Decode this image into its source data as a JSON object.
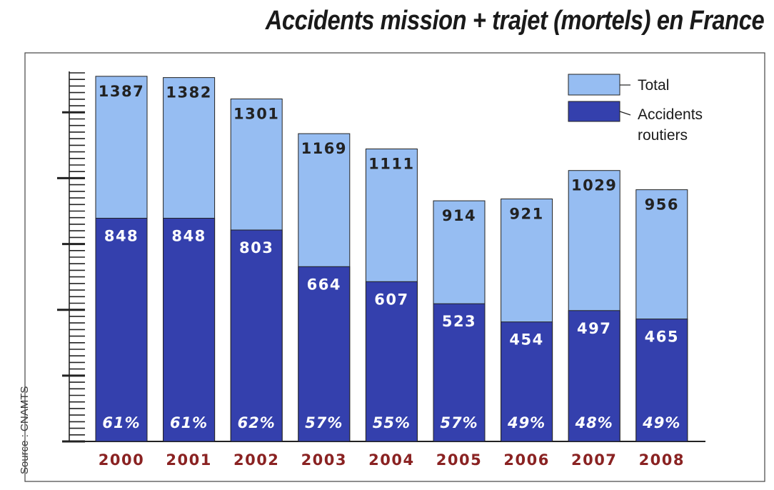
{
  "chart_data": {
    "type": "bar",
    "title": "Accidents mission + trajet (mortels) en France",
    "source": "Source : CNAMTS",
    "categories": [
      "2000",
      "2001",
      "2002",
      "2003",
      "2004",
      "2005",
      "2006",
      "2007",
      "2008"
    ],
    "series": [
      {
        "name": "Total",
        "values": [
          1387,
          1382,
          1301,
          1169,
          1111,
          914,
          921,
          1029,
          956
        ]
      },
      {
        "name": "Accidents routiers",
        "values": [
          848,
          848,
          803,
          664,
          607,
          523,
          454,
          497,
          465
        ]
      }
    ],
    "percent_labels": [
      "61%",
      "61%",
      "62%",
      "57%",
      "55%",
      "57%",
      "49%",
      "48%",
      "49%"
    ],
    "overlap": true,
    "legend_position": "top-right",
    "legend": [
      {
        "label": "Total"
      },
      {
        "label_lines": [
          "Accidents",
          "routiers"
        ]
      }
    ],
    "ylim": [
      0,
      1400
    ],
    "grid": false,
    "colors": {
      "total": "#96bdf2",
      "routiers": "#3440ad",
      "year_labels": "#8a2222",
      "value_labels_total": "#222222",
      "value_labels_routiers": "#ffffff"
    }
  }
}
